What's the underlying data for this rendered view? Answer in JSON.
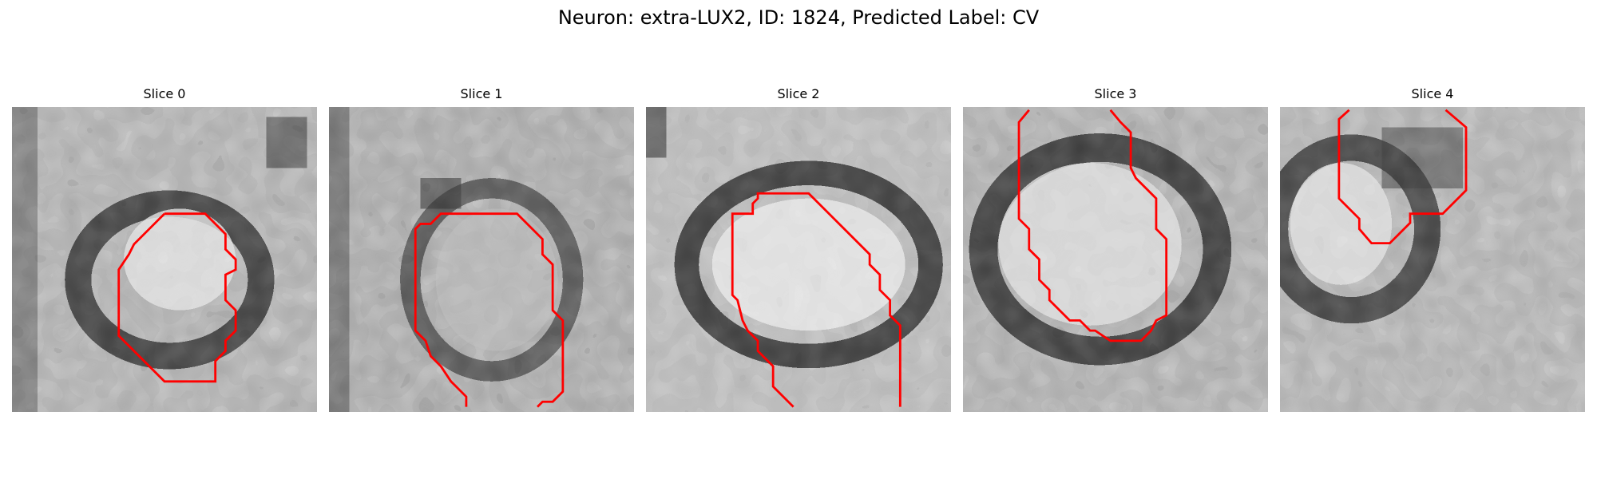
{
  "figure": {
    "title": "Neuron: extra-LUX2, ID: 1824, Predicted Label: CV",
    "contour_color": "#ff0000"
  },
  "panels": [
    {
      "title": "Slice 0"
    },
    {
      "title": "Slice 1"
    },
    {
      "title": "Slice 2"
    },
    {
      "title": "Slice 3"
    },
    {
      "title": "Slice 4"
    }
  ]
}
